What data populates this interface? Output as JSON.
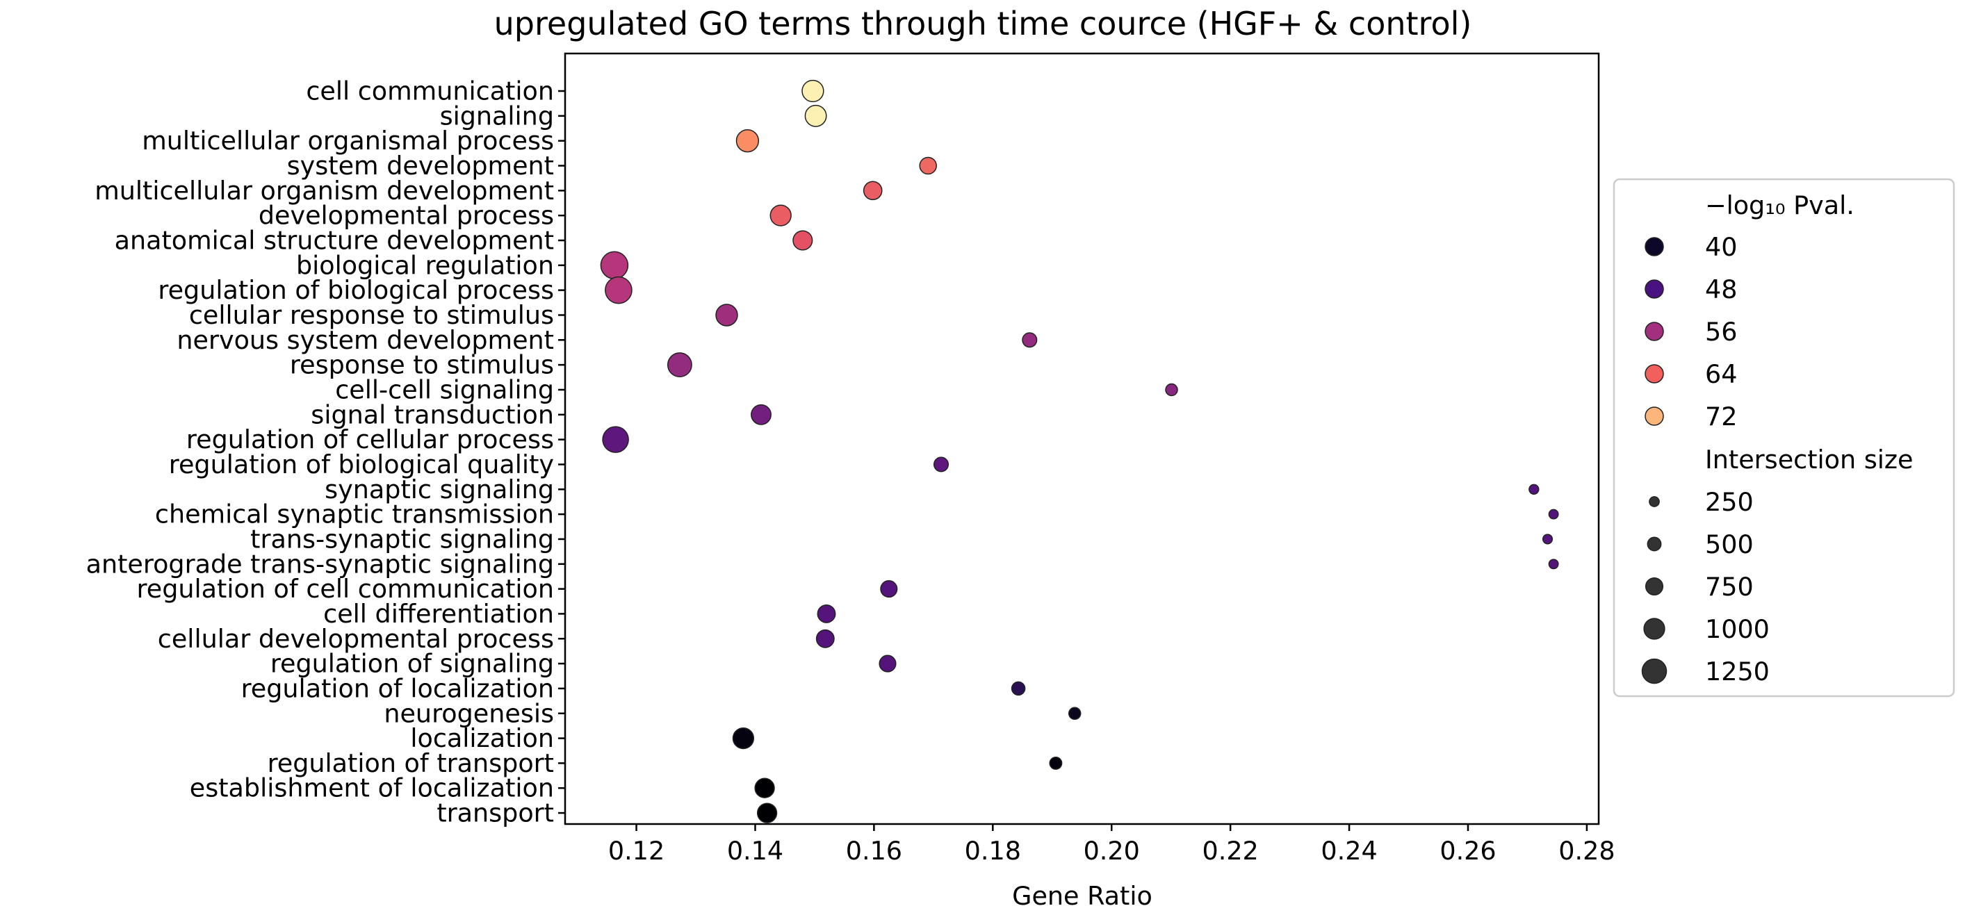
{
  "chart_data": {
    "type": "scatter",
    "title": "upregulated GO terms through time cource (HGF+ & control)",
    "xlabel": "Gene Ratio",
    "ylabel": "",
    "xlim": [
      0.108,
      0.282
    ],
    "xticks": [
      0.12,
      0.14,
      0.16,
      0.18,
      0.2,
      0.22,
      0.24,
      0.26,
      0.28
    ],
    "xtick_labels": [
      "0.12",
      "0.14",
      "0.16",
      "0.18",
      "0.20",
      "0.22",
      "0.24",
      "0.26",
      "0.28"
    ],
    "grid": false,
    "colormap": "magma",
    "points": [
      {
        "term": "cell communication",
        "gene_ratio": 0.1497,
        "neglog10_pval": 74,
        "size": 1050
      },
      {
        "term": "signaling",
        "gene_ratio": 0.1502,
        "neglog10_pval": 74,
        "size": 1030
      },
      {
        "term": "multicellular organismal process",
        "gene_ratio": 0.1387,
        "neglog10_pval": 66,
        "size": 1100
      },
      {
        "term": "system development",
        "gene_ratio": 0.1691,
        "neglog10_pval": 63,
        "size": 720
      },
      {
        "term": "multicellular organism development",
        "gene_ratio": 0.1598,
        "neglog10_pval": 62,
        "size": 830
      },
      {
        "term": "developmental process",
        "gene_ratio": 0.1443,
        "neglog10_pval": 62,
        "size": 1000
      },
      {
        "term": "anatomical structure development",
        "gene_ratio": 0.148,
        "neglog10_pval": 61,
        "size": 890
      },
      {
        "term": "biological regulation",
        "gene_ratio": 0.1163,
        "neglog10_pval": 56,
        "size": 1440
      },
      {
        "term": "regulation of biological process",
        "gene_ratio": 0.117,
        "neglog10_pval": 56,
        "size": 1400
      },
      {
        "term": "cellular response to stimulus",
        "gene_ratio": 0.1352,
        "neglog10_pval": 54,
        "size": 1060
      },
      {
        "term": "nervous system development",
        "gene_ratio": 0.1862,
        "neglog10_pval": 53,
        "size": 560
      },
      {
        "term": "response to stimulus",
        "gene_ratio": 0.1273,
        "neglog10_pval": 53,
        "size": 1220
      },
      {
        "term": "cell-cell signaling",
        "gene_ratio": 0.2101,
        "neglog10_pval": 52,
        "size": 380
      },
      {
        "term": "signal transduction",
        "gene_ratio": 0.141,
        "neglog10_pval": 50,
        "size": 930
      },
      {
        "term": "regulation of cellular process",
        "gene_ratio": 0.1165,
        "neglog10_pval": 48,
        "size": 1350
      },
      {
        "term": "regulation of biological quality",
        "gene_ratio": 0.1713,
        "neglog10_pval": 48,
        "size": 560
      },
      {
        "term": "synaptic signaling",
        "gene_ratio": 0.2711,
        "neglog10_pval": 47,
        "size": 230
      },
      {
        "term": "chemical synaptic transmission",
        "gene_ratio": 0.2744,
        "neglog10_pval": 47,
        "size": 210
      },
      {
        "term": "trans-synaptic signaling",
        "gene_ratio": 0.2734,
        "neglog10_pval": 47,
        "size": 220
      },
      {
        "term": "anterograde trans-synaptic signaling",
        "gene_ratio": 0.2744,
        "neglog10_pval": 47,
        "size": 210
      },
      {
        "term": "regulation of cell communication",
        "gene_ratio": 0.1625,
        "neglog10_pval": 47,
        "size": 700
      },
      {
        "term": "cell differentiation",
        "gene_ratio": 0.152,
        "neglog10_pval": 47,
        "size": 790
      },
      {
        "term": "cellular developmental process",
        "gene_ratio": 0.1518,
        "neglog10_pval": 47,
        "size": 790
      },
      {
        "term": "regulation of signaling",
        "gene_ratio": 0.1623,
        "neglog10_pval": 47,
        "size": 700
      },
      {
        "term": "regulation of localization",
        "gene_ratio": 0.1843,
        "neglog10_pval": 43,
        "size": 480
      },
      {
        "term": "neurogenesis",
        "gene_ratio": 0.1938,
        "neglog10_pval": 39,
        "size": 380
      },
      {
        "term": "localization",
        "gene_ratio": 0.138,
        "neglog10_pval": 38,
        "size": 1000
      },
      {
        "term": "regulation of transport",
        "gene_ratio": 0.1906,
        "neglog10_pval": 38,
        "size": 400
      },
      {
        "term": "establishment of localization",
        "gene_ratio": 0.1416,
        "neglog10_pval": 37,
        "size": 900
      },
      {
        "term": "transport",
        "gene_ratio": 0.142,
        "neglog10_pval": 37,
        "size": 900
      }
    ],
    "legend": {
      "placement": "right",
      "color_title": "−log₁₀ Pval.",
      "color_entries": [
        {
          "label": "40",
          "value": 40,
          "color": "#0d0829"
        },
        {
          "label": "48",
          "value": 48,
          "color": "#4a1280"
        },
        {
          "label": "56",
          "value": 56,
          "color": "#a3307e"
        },
        {
          "label": "64",
          "value": 64,
          "color": "#f1605d"
        },
        {
          "label": "72",
          "value": 72,
          "color": "#fcb57a"
        }
      ],
      "size_title": "Intersection size",
      "size_entries": [
        {
          "label": "250",
          "value": 250
        },
        {
          "label": "500",
          "value": 500
        },
        {
          "label": "750",
          "value": 750
        },
        {
          "label": "1000",
          "value": 1000
        },
        {
          "label": "1250",
          "value": 1250
        }
      ]
    }
  }
}
